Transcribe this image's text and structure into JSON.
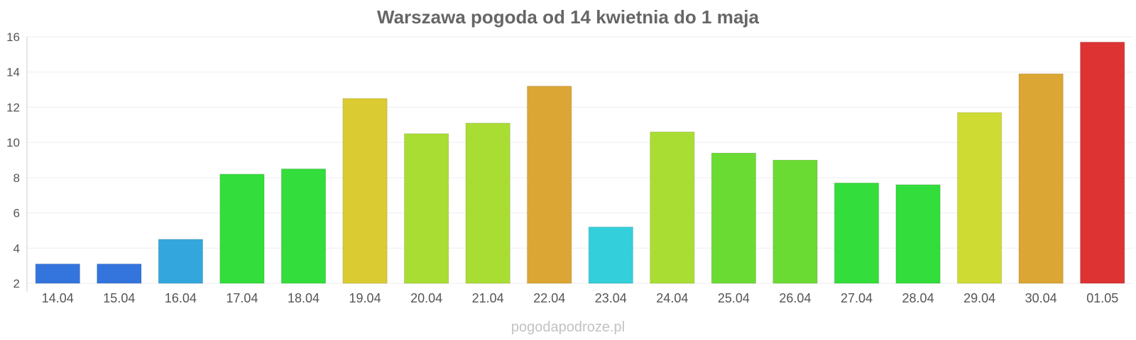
{
  "chart_data": {
    "type": "bar",
    "title": "Warszawa pogoda od 14 kwietnia do 1 maja",
    "xlabel": "",
    "ylabel": "",
    "ylim": [
      2,
      16
    ],
    "yticks": [
      "2",
      "4",
      "6",
      "8",
      "10",
      "12",
      "14",
      "16"
    ],
    "grid": true,
    "legend": "none",
    "categories": [
      "14.04",
      "15.04",
      "16.04",
      "17.04",
      "18.04",
      "19.04",
      "20.04",
      "21.04",
      "22.04",
      "23.04",
      "24.04",
      "25.04",
      "26.04",
      "27.04",
      "28.04",
      "29.04",
      "30.04",
      "01.05"
    ],
    "values": [
      3.1,
      3.1,
      4.5,
      8.2,
      8.5,
      12.5,
      10.5,
      11.1,
      13.2,
      5.2,
      10.6,
      9.4,
      9.0,
      7.7,
      7.6,
      11.7,
      13.9,
      15.7
    ],
    "colors": [
      "#3375dd",
      "#3375dd",
      "#33a7dd",
      "#33dd3b",
      "#33dd3b",
      "#dbcb33",
      "#aadd33",
      "#aadd33",
      "#dba633",
      "#33cfdb",
      "#aadd33",
      "#6adb33",
      "#6adb33",
      "#33dd3b",
      "#33dd3b",
      "#cedb33",
      "#dba633",
      "#dd3333"
    ]
  },
  "footer": {
    "credit": "pogodapodroze.pl"
  }
}
